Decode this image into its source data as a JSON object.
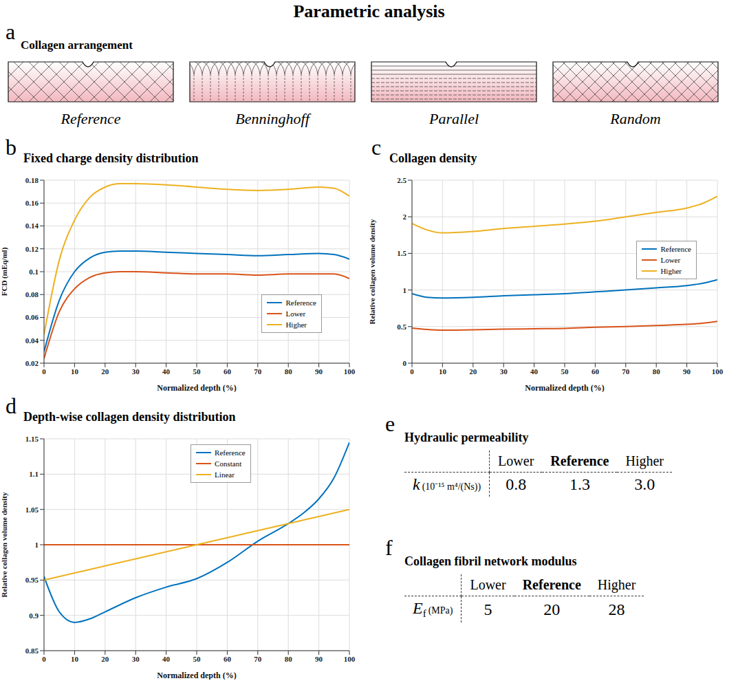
{
  "title": "Parametric analysis",
  "diagram": {
    "letter": "a",
    "title": "Collagen arrangement",
    "items": [
      "Reference",
      "Benninghoff",
      "Parallel",
      "Random"
    ]
  },
  "chart_data": [
    {
      "letter": "b",
      "type": "line",
      "title": "Fixed charge density distribution",
      "x_label": "Normalized depth (%)",
      "y_label": "FCD (mEq/ml)",
      "x": [
        0,
        5,
        10,
        15,
        20,
        25,
        30,
        40,
        50,
        60,
        70,
        80,
        90,
        95,
        100
      ],
      "series": [
        {
          "name": "Reference",
          "color": "#0072BD",
          "values": [
            0.03,
            0.075,
            0.1,
            0.112,
            0.117,
            0.118,
            0.118,
            0.117,
            0.116,
            0.115,
            0.114,
            0.115,
            0.116,
            0.115,
            0.111
          ]
        },
        {
          "name": "Lower",
          "color": "#D95319",
          "values": [
            0.024,
            0.065,
            0.085,
            0.095,
            0.099,
            0.1,
            0.1,
            0.099,
            0.098,
            0.098,
            0.097,
            0.098,
            0.098,
            0.098,
            0.094
          ]
        },
        {
          "name": "Higher",
          "color": "#EDB120",
          "values": [
            0.045,
            0.11,
            0.145,
            0.165,
            0.174,
            0.177,
            0.177,
            0.176,
            0.174,
            0.172,
            0.171,
            0.172,
            0.174,
            0.173,
            0.166
          ]
        }
      ],
      "xlim": [
        0,
        100
      ],
      "xticks": [
        0,
        10,
        20,
        30,
        40,
        50,
        60,
        70,
        80,
        90,
        100
      ],
      "ylim": [
        0.02,
        0.18
      ],
      "yticks": [
        0.02,
        0.04,
        0.06,
        0.08,
        0.1,
        0.12,
        0.14,
        0.16,
        0.18
      ],
      "grid": true,
      "legend": "lower right"
    },
    {
      "letter": "c",
      "type": "line",
      "title": "Collagen density",
      "x_label": "Normalized depth (%)",
      "y_label": "Relative collagen volume density",
      "x": [
        0,
        5,
        10,
        20,
        30,
        40,
        50,
        60,
        70,
        80,
        90,
        95,
        100
      ],
      "series": [
        {
          "name": "Reference",
          "color": "#0072BD",
          "values": [
            0.95,
            0.9,
            0.89,
            0.9,
            0.92,
            0.935,
            0.95,
            0.975,
            1.0,
            1.03,
            1.06,
            1.09,
            1.14
          ]
        },
        {
          "name": "Lower",
          "color": "#D95319",
          "values": [
            0.48,
            0.46,
            0.45,
            0.455,
            0.465,
            0.47,
            0.475,
            0.49,
            0.5,
            0.515,
            0.53,
            0.545,
            0.57
          ]
        },
        {
          "name": "Higher",
          "color": "#EDB120",
          "values": [
            1.91,
            1.82,
            1.78,
            1.8,
            1.84,
            1.87,
            1.9,
            1.94,
            2.0,
            2.06,
            2.12,
            2.18,
            2.28
          ]
        }
      ],
      "xlim": [
        0,
        100
      ],
      "xticks": [
        0,
        10,
        20,
        30,
        40,
        50,
        60,
        70,
        80,
        90,
        100
      ],
      "ylim": [
        0,
        2.5
      ],
      "yticks": [
        0,
        0.5,
        1,
        1.5,
        2,
        2.5
      ],
      "grid": true,
      "legend": "center right"
    },
    {
      "letter": "d",
      "type": "line",
      "title": "Depth-wise collagen density distribution",
      "x_label": "Normalized depth (%)",
      "y_label": "Relative collagen volume density",
      "x": [
        0,
        5,
        10,
        15,
        20,
        30,
        40,
        50,
        60,
        70,
        80,
        85,
        90,
        95,
        100
      ],
      "series": [
        {
          "name": "Reference",
          "color": "#0072BD",
          "values": [
            0.955,
            0.905,
            0.89,
            0.895,
            0.905,
            0.925,
            0.94,
            0.952,
            0.975,
            1.005,
            1.03,
            1.045,
            1.065,
            1.095,
            1.145
          ]
        },
        {
          "name": "Constant",
          "color": "#D95319",
          "values": [
            1,
            1,
            1,
            1,
            1,
            1,
            1,
            1,
            1,
            1,
            1,
            1,
            1,
            1,
            1
          ]
        },
        {
          "name": "Linear",
          "color": "#EDB120",
          "values": [
            0.95,
            0.955,
            0.96,
            0.965,
            0.97,
            0.98,
            0.99,
            1,
            1.01,
            1.02,
            1.03,
            1.035,
            1.04,
            1.045,
            1.05
          ]
        }
      ],
      "xlim": [
        0,
        100
      ],
      "xticks": [
        0,
        10,
        20,
        30,
        40,
        50,
        60,
        70,
        80,
        90,
        100
      ],
      "ylim": [
        0.85,
        1.15
      ],
      "yticks": [
        0.85,
        0.9,
        0.95,
        1,
        1.05,
        1.1,
        1.15
      ],
      "grid": true,
      "legend": "upper center"
    }
  ],
  "tables": [
    {
      "letter": "e",
      "title": "Hydraulic permeability",
      "columns": [
        "Lower",
        "Reference",
        "Higher"
      ],
      "rows": [
        {
          "symbol": "k",
          "unit": "(10⁻¹⁵ m⁴/(Ns))",
          "values": [
            "0.8",
            "1.3",
            "3.0"
          ]
        }
      ]
    },
    {
      "letter": "f",
      "title": "Collagen fibril network modulus",
      "columns": [
        "Lower",
        "Reference",
        "Higher"
      ],
      "rows": [
        {
          "symbol": "E",
          "subscript": "f",
          "unit": "(MPa)",
          "values": [
            "5",
            "20",
            "28"
          ]
        }
      ]
    }
  ]
}
